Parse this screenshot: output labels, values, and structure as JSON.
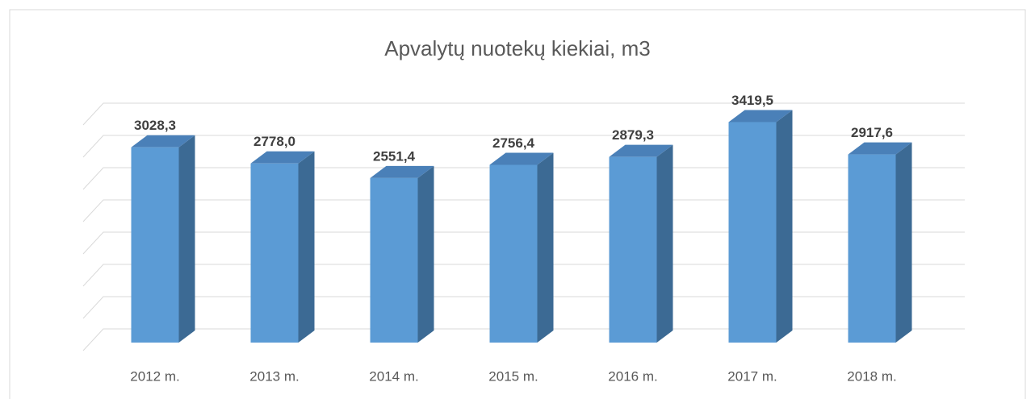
{
  "chart_data": {
    "type": "bar3d",
    "title": "Apvalytų nuotekų kiekiai, m3",
    "categories": [
      "2012 m.",
      "2013 m.",
      "2014 m.",
      "2015 m.",
      "2016 m.",
      "2017 m.",
      "2018 m."
    ],
    "values": [
      3028.3,
      2778.0,
      2551.4,
      2756.4,
      2879.3,
      3419.5,
      2917.6
    ],
    "value_labels": [
      "3028,3",
      "2778,0",
      "2551,4",
      "2756,4",
      "2879,3",
      "3419,5",
      "2917,6"
    ],
    "color": "#5b9bd5",
    "ylim": [
      0,
      3500
    ],
    "yticks": [
      0,
      500,
      1000,
      1500,
      2000,
      2500,
      3000,
      3500
    ],
    "grid": true
  }
}
